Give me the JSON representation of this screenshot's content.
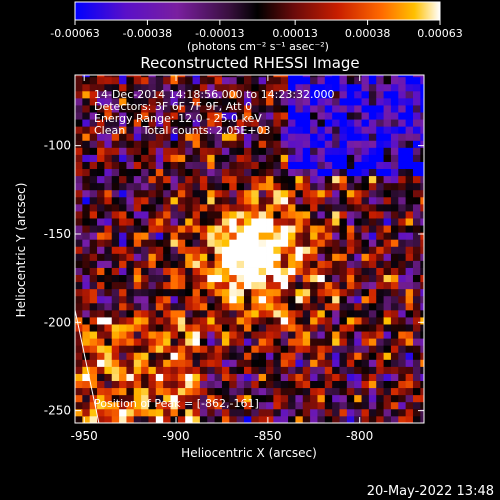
{
  "chart_data": {
    "type": "heatmap",
    "title": "Reconstructed RHESSI Image",
    "xlabel": "Heliocentric X (arcsec)",
    "ylabel": "Heliocentric Y (arcsec)",
    "xlim": [
      -955,
      -765
    ],
    "ylim": [
      -257,
      -60
    ],
    "x_ticks": [
      -950,
      -900,
      -850,
      -800
    ],
    "y_ticks": [
      -100,
      -150,
      -200,
      -250
    ],
    "grid": false,
    "colorbar": {
      "min": -0.00063,
      "max": 0.00063,
      "tick_values": [
        -0.00063,
        -0.00038,
        -0.00013,
        0.00013,
        0.00038,
        0.00063
      ],
      "tick_labels": [
        "-0.00063",
        "-0.00038",
        "-0.00013",
        "0.00013",
        "0.00038",
        "0.00063"
      ],
      "unit_label": "(photons cm⁻² s⁻¹ asec⁻²)",
      "colormap": [
        "#0000ff",
        "#5a10c8",
        "#7a1fa0",
        "#3a1040",
        "#000000",
        "#6a0a0a",
        "#c81e00",
        "#ff6a00",
        "#ffc000",
        "#ffffff"
      ]
    },
    "annotations": [
      "14-Dec-2014 14:18:56.000 to 14:23:32.000",
      "Detectors: 3F 6F 7F 9F, Att 0",
      "Energy Range: 12.0 - 25.0 keV",
      "Clean     Total counts: 2.05E+03"
    ],
    "peak_label": "Position of Peak = [-862,-161]",
    "peak": {
      "x": -862,
      "y": -161
    },
    "limb_line": [
      [
        -955,
        -193
      ],
      [
        -942,
        -257
      ]
    ],
    "pixel_size_arcsec": 4
  },
  "footer": {
    "timestamp": "20-May-2022 13:48"
  }
}
